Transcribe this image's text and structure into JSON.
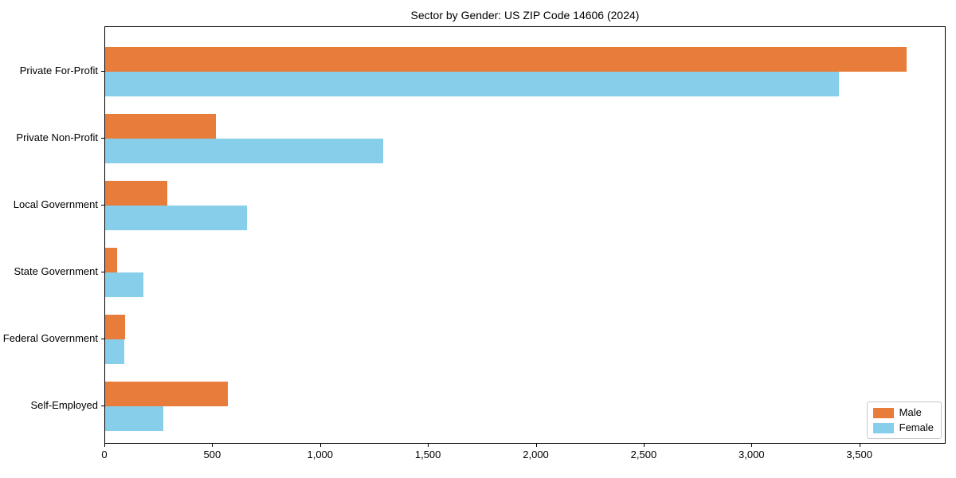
{
  "chart_data": {
    "type": "bar",
    "orientation": "horizontal",
    "title": "Sector by Gender: US ZIP Code 14606 (2024)",
    "categories": [
      "Private For-Profit",
      "Private Non-Profit",
      "Local Government",
      "State Government",
      "Federal Government",
      "Self-Employed"
    ],
    "series": [
      {
        "name": "Male",
        "color": "#e87d3b",
        "values": [
          3714,
          514,
          289,
          55,
          93,
          570
        ]
      },
      {
        "name": "Female",
        "color": "#87ceeb",
        "values": [
          3403,
          1288,
          658,
          177,
          87,
          270
        ]
      }
    ],
    "xlabel": "",
    "ylabel": "",
    "xlim": [
      0,
      3900
    ],
    "xticks": [
      0,
      500,
      1000,
      1500,
      2000,
      2500,
      3000,
      3500
    ],
    "xtick_labels": [
      "0",
      "500",
      "1,000",
      "1,500",
      "2,000",
      "2,500",
      "3,000",
      "3,500"
    ],
    "grid": false,
    "legend_position": "lower right",
    "axis_color": "#000000",
    "background_color": "#ffffff"
  }
}
